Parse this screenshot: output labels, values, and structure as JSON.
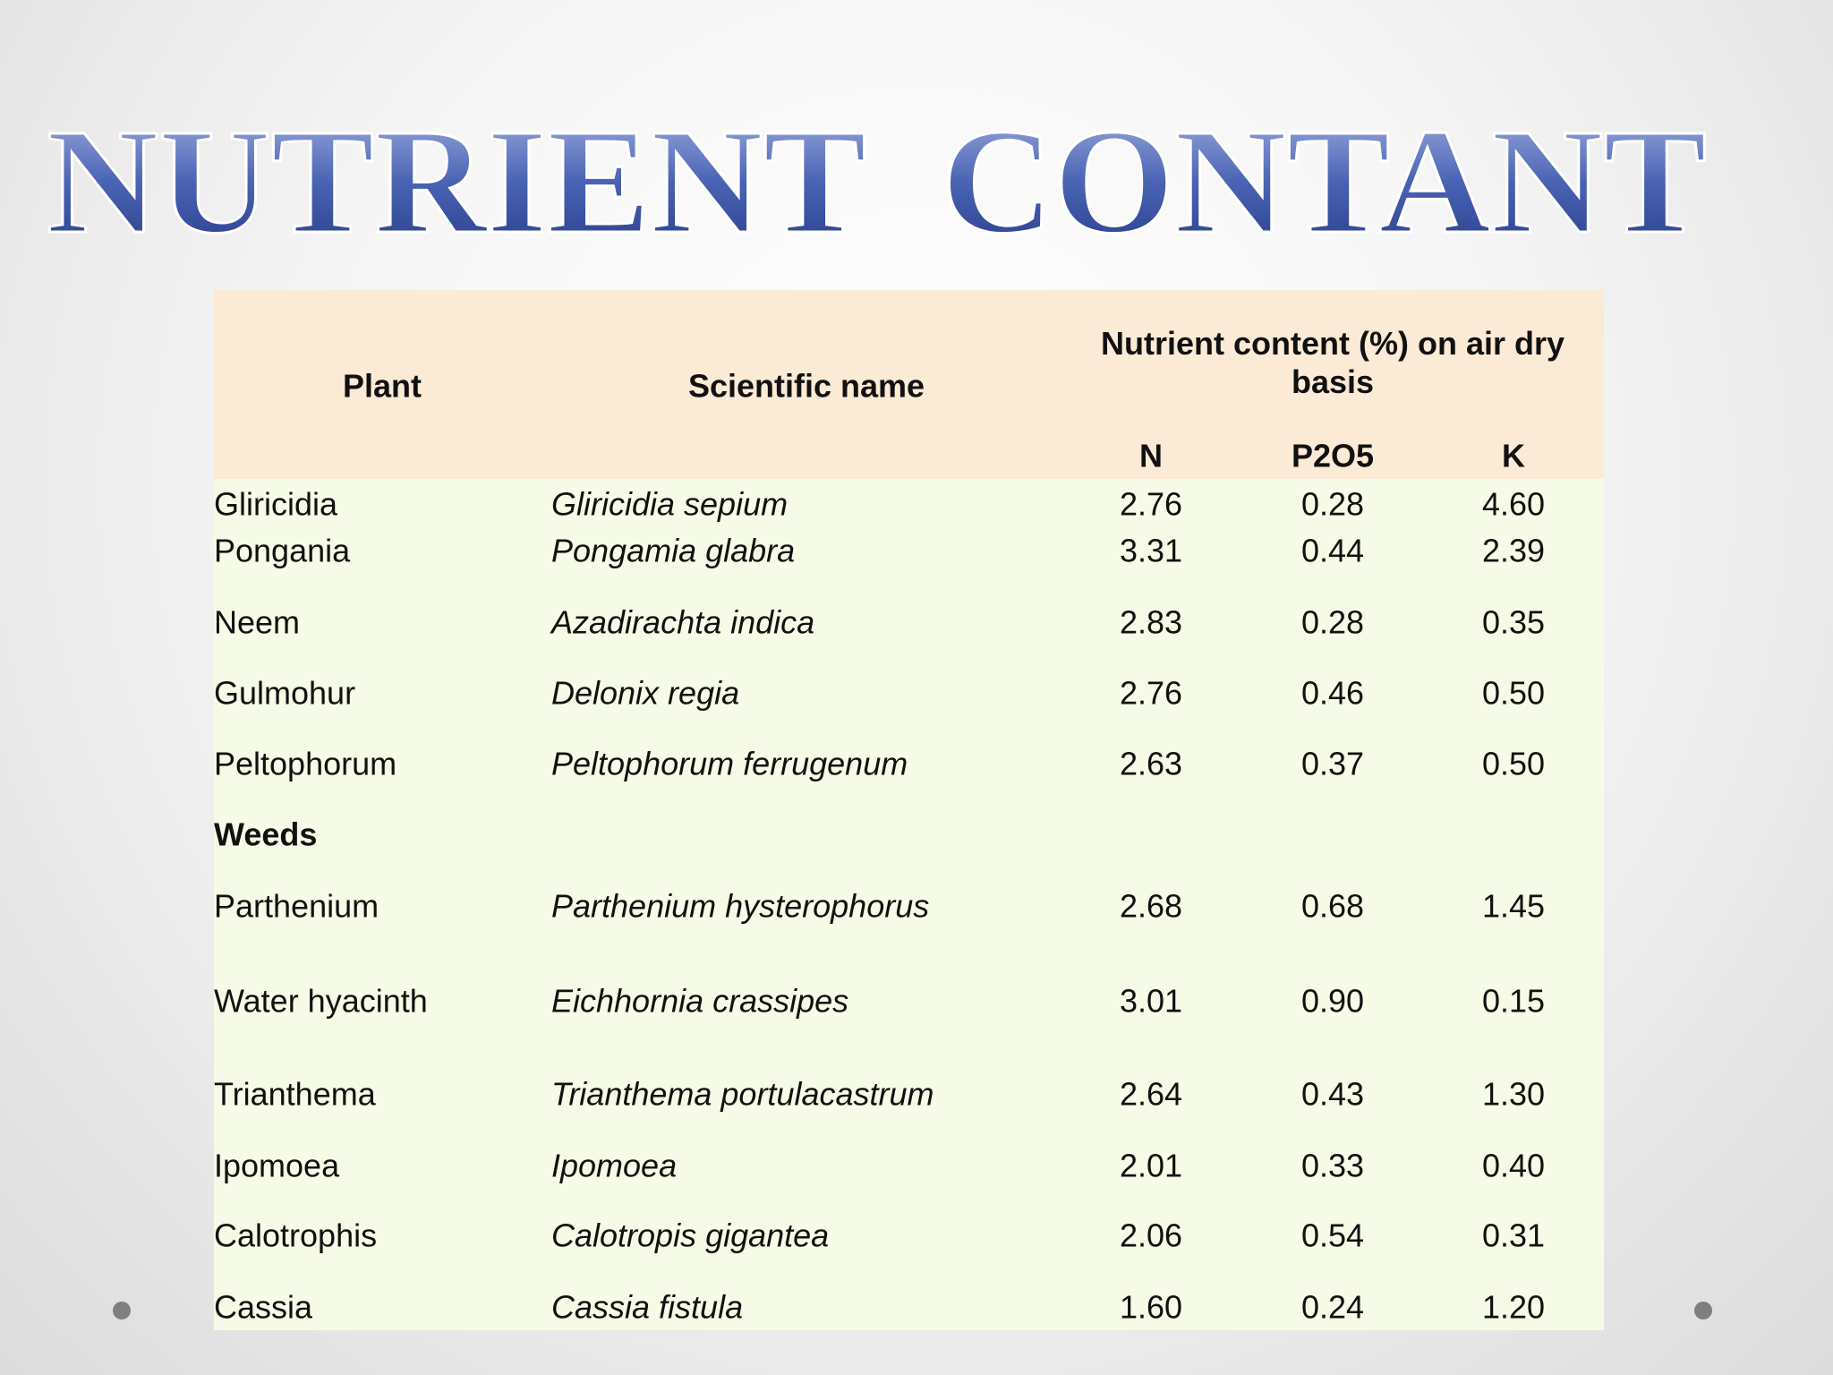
{
  "title": "NUTRIENT  CONTANT",
  "table": {
    "header": {
      "plant": "Plant",
      "scientific": "Scientific name",
      "group": "Nutrient content (%) on air dry basis",
      "n": "N",
      "p2o5": "P2O5",
      "k": "K"
    },
    "rows": [
      {
        "plant": "Gliricidia",
        "scientific": "Gliricidia sepium",
        "n": "2.76",
        "p2o5": "0.28",
        "k": "4.60"
      },
      {
        "plant": "Pongania",
        "scientific": "Pongamia glabra",
        "n": "3.31",
        "p2o5": "0.44",
        "k": "2.39"
      },
      {
        "plant": "Neem",
        "scientific": "Azadirachta indica",
        "n": "2.83",
        "p2o5": "0.28",
        "k": "0.35"
      },
      {
        "plant": "Gulmohur",
        "scientific": "Delonix regia",
        "n": "2.76",
        "p2o5": "0.46",
        "k": "0.50"
      },
      {
        "plant": "Peltophorum",
        "scientific": "Peltophorum ferrugenum",
        "n": "2.63",
        "p2o5": "0.37",
        "k": "0.50"
      },
      {
        "heading": "Weeds"
      },
      {
        "plant": "Parthenium",
        "scientific": "Parthenium hysterophorus",
        "n": "2.68",
        "p2o5": "0.68",
        "k": "1.45"
      },
      {
        "plant": "Water hyacinth",
        "scientific": "Eichhornia crassipes",
        "n": "3.01",
        "p2o5": "0.90",
        "k": "0.15"
      },
      {
        "plant": "Trianthema",
        "scientific": "Trianthema portulacastrum",
        "n": "2.64",
        "p2o5": "0.43",
        "k": "1.30"
      },
      {
        "plant": "Ipomoea",
        "scientific": "Ipomoea",
        "n": "2.01",
        "p2o5": "0.33",
        "k": "0.40"
      },
      {
        "plant": "Calotrophis",
        "scientific": "Calotropis gigantea",
        "n": "2.06",
        "p2o5": "0.54",
        "k": "0.31"
      },
      {
        "plant": "Cassia",
        "scientific": "Cassia fistula",
        "n": "1.60",
        "p2o5": "0.24",
        "k": "1.20"
      }
    ]
  }
}
